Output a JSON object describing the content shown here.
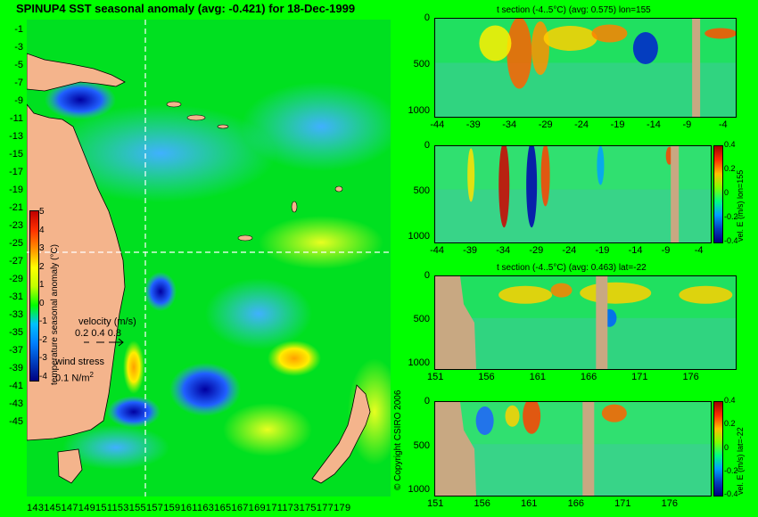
{
  "header": {
    "title": "SPINUP4 SST seasonal anomaly (avg: -0.421) for 18-Dec-1999"
  },
  "map": {
    "lat_ticks": [
      "-1",
      "-3",
      "-5",
      "-7",
      "-9",
      "-11",
      "-13",
      "-15",
      "-17",
      "-19",
      "-21",
      "-23",
      "-25",
      "-27",
      "-29",
      "-31",
      "-33",
      "-35",
      "-37",
      "-39",
      "-41",
      "-43",
      "-45"
    ],
    "lon_ticks_text": "1431451471491511531551571591611631651671691711731751771",
    "lon_last": "79",
    "colorbar_title": "temperature seasonal anomaly (°C)",
    "colorbar_ticks": [
      "5",
      "4",
      "3",
      "2",
      "1",
      "0",
      "-1",
      "-2",
      "-3",
      "-4"
    ],
    "velocity_label": "velocity (m/s)",
    "velocity_scale": "0.2 0.4 0.8",
    "wind_label": "wind stress",
    "wind_scale": "0.1 N/m",
    "wind_unit_sup": "2",
    "colors": {
      "land": "#f4b48c",
      "ocean": "#00ff00",
      "cold": "#0000c8",
      "warm": "#ff3c00",
      "guide": "#ffffff"
    }
  },
  "panels": [
    {
      "title": "t section (-4..5°C) (avg: 0.575) lon=155",
      "xticks": [
        "-44",
        "-39",
        "-34",
        "-29",
        "-24",
        "-19",
        "-14",
        "-9",
        "-4"
      ],
      "yticks": [
        "0",
        "500",
        "1000"
      ]
    },
    {
      "title": "",
      "xticks": [
        "-44",
        "-39",
        "-34",
        "-29",
        "-24",
        "-19",
        "-14",
        "-9",
        "-4"
      ],
      "yticks": [
        "0",
        "500",
        "1000"
      ],
      "colorbar_label": "vel. E (m/s) lon=155",
      "colorbar_ticks": [
        "0.4",
        "0.2",
        "0",
        "-0.2",
        "-0.4"
      ]
    },
    {
      "title": "t section (-4..5°C) (avg: 0.463) lat=-22",
      "xticks": [
        "151",
        "156",
        "161",
        "166",
        "171",
        "176"
      ],
      "yticks": [
        "0",
        "500",
        "1000"
      ]
    },
    {
      "title": "",
      "xticks": [
        "151",
        "156",
        "161",
        "166",
        "171",
        "176"
      ],
      "yticks": [
        "0",
        "500",
        "1000"
      ],
      "colorbar_label": "vel. E (m/s) lat=-22",
      "colorbar_ticks": [
        "0.4",
        "0.2",
        "0",
        "-0.2",
        "-0.4"
      ]
    }
  ],
  "copyright": "© Copyright CSIRO 2006",
  "chart_data": [
    {
      "type": "heatmap",
      "title": "SPINUP4 SST seasonal anomaly (avg: -0.421) for 18-Dec-1999",
      "xlabel": "",
      "ylabel": "",
      "xlim": [
        143,
        179
      ],
      "ylim": [
        -45,
        -1
      ],
      "colorbar": {
        "label": "temperature seasonal anomaly (°C)",
        "range": [
          -4,
          5
        ]
      },
      "average": -0.421
    },
    {
      "type": "heatmap",
      "title": "t section (-4..5°C) (avg: 0.575) lon=155",
      "x": [
        -44,
        -39,
        -34,
        -29,
        -24,
        -19,
        -14,
        -9,
        -4
      ],
      "y_ticks": [
        0,
        500,
        1000
      ],
      "average": 0.575
    },
    {
      "type": "heatmap",
      "title": "",
      "x": [
        -44,
        -39,
        -34,
        -29,
        -24,
        -19,
        -14,
        -9,
        -4
      ],
      "y_ticks": [
        0,
        500,
        1000
      ],
      "colorbar": {
        "label": "vel. E (m/s) lon=155",
        "range": [
          -0.4,
          0.4
        ]
      }
    },
    {
      "type": "heatmap",
      "title": "t section (-4..5°C) (avg: 0.463) lat=-22",
      "x": [
        151,
        156,
        161,
        166,
        171,
        176
      ],
      "y_ticks": [
        0,
        500,
        1000
      ],
      "average": 0.463
    },
    {
      "type": "heatmap",
      "title": "",
      "x": [
        151,
        156,
        161,
        166,
        171,
        176
      ],
      "y_ticks": [
        0,
        500,
        1000
      ],
      "colorbar": {
        "label": "vel. E (m/s) lat=-22",
        "range": [
          -0.4,
          0.4
        ]
      }
    }
  ]
}
